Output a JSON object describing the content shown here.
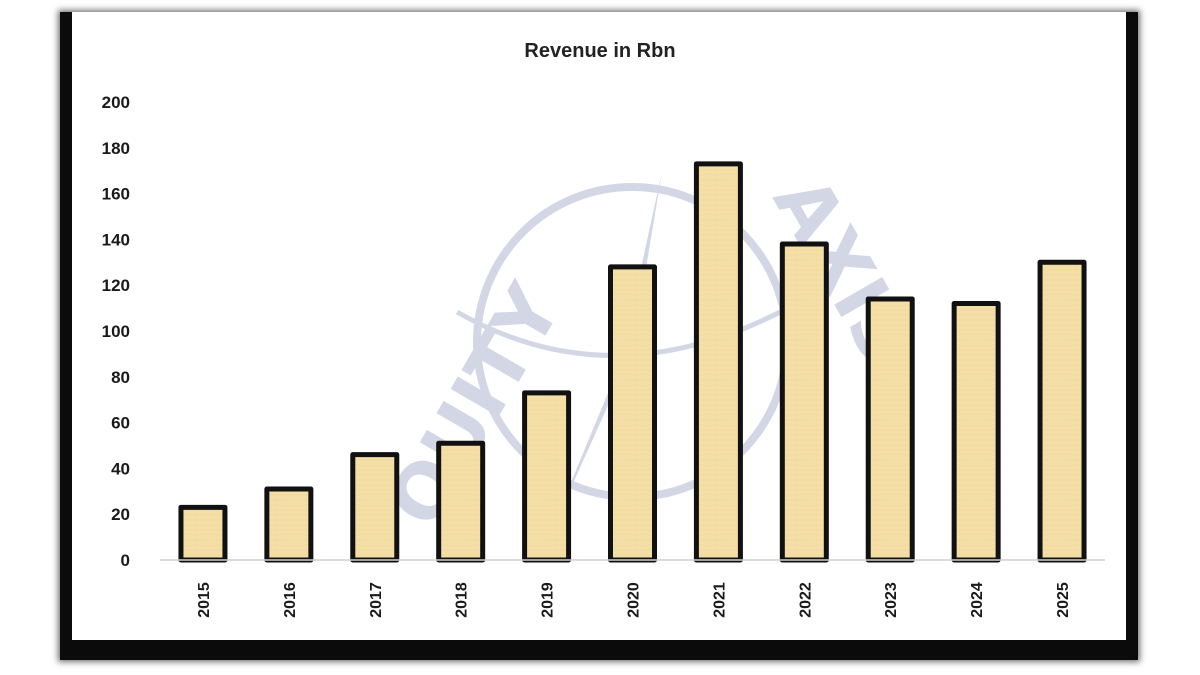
{
  "colors": {
    "bar_fill": "#f4dfa6",
    "bar_outline": "#111111",
    "frame": "#0b0b0b",
    "background": "#ffffff",
    "watermark": "#3a4a8c"
  },
  "watermark": {
    "text_left": "QUITY",
    "text_right": "AXIS"
  },
  "chart_data": {
    "type": "bar",
    "title": "Revenue in Rbn",
    "xlabel": "",
    "ylabel": "",
    "categories": [
      "2015",
      "2016",
      "2017",
      "2018",
      "2019",
      "2020",
      "2021",
      "2022",
      "2023",
      "2024",
      "2025"
    ],
    "values": [
      23,
      31,
      46,
      51,
      73,
      128,
      173,
      138,
      114,
      112,
      130
    ],
    "ylim": [
      0,
      200
    ],
    "yticks": [
      0,
      20,
      40,
      60,
      80,
      100,
      120,
      140,
      160,
      180,
      200
    ],
    "grid": false,
    "legend": "none"
  }
}
